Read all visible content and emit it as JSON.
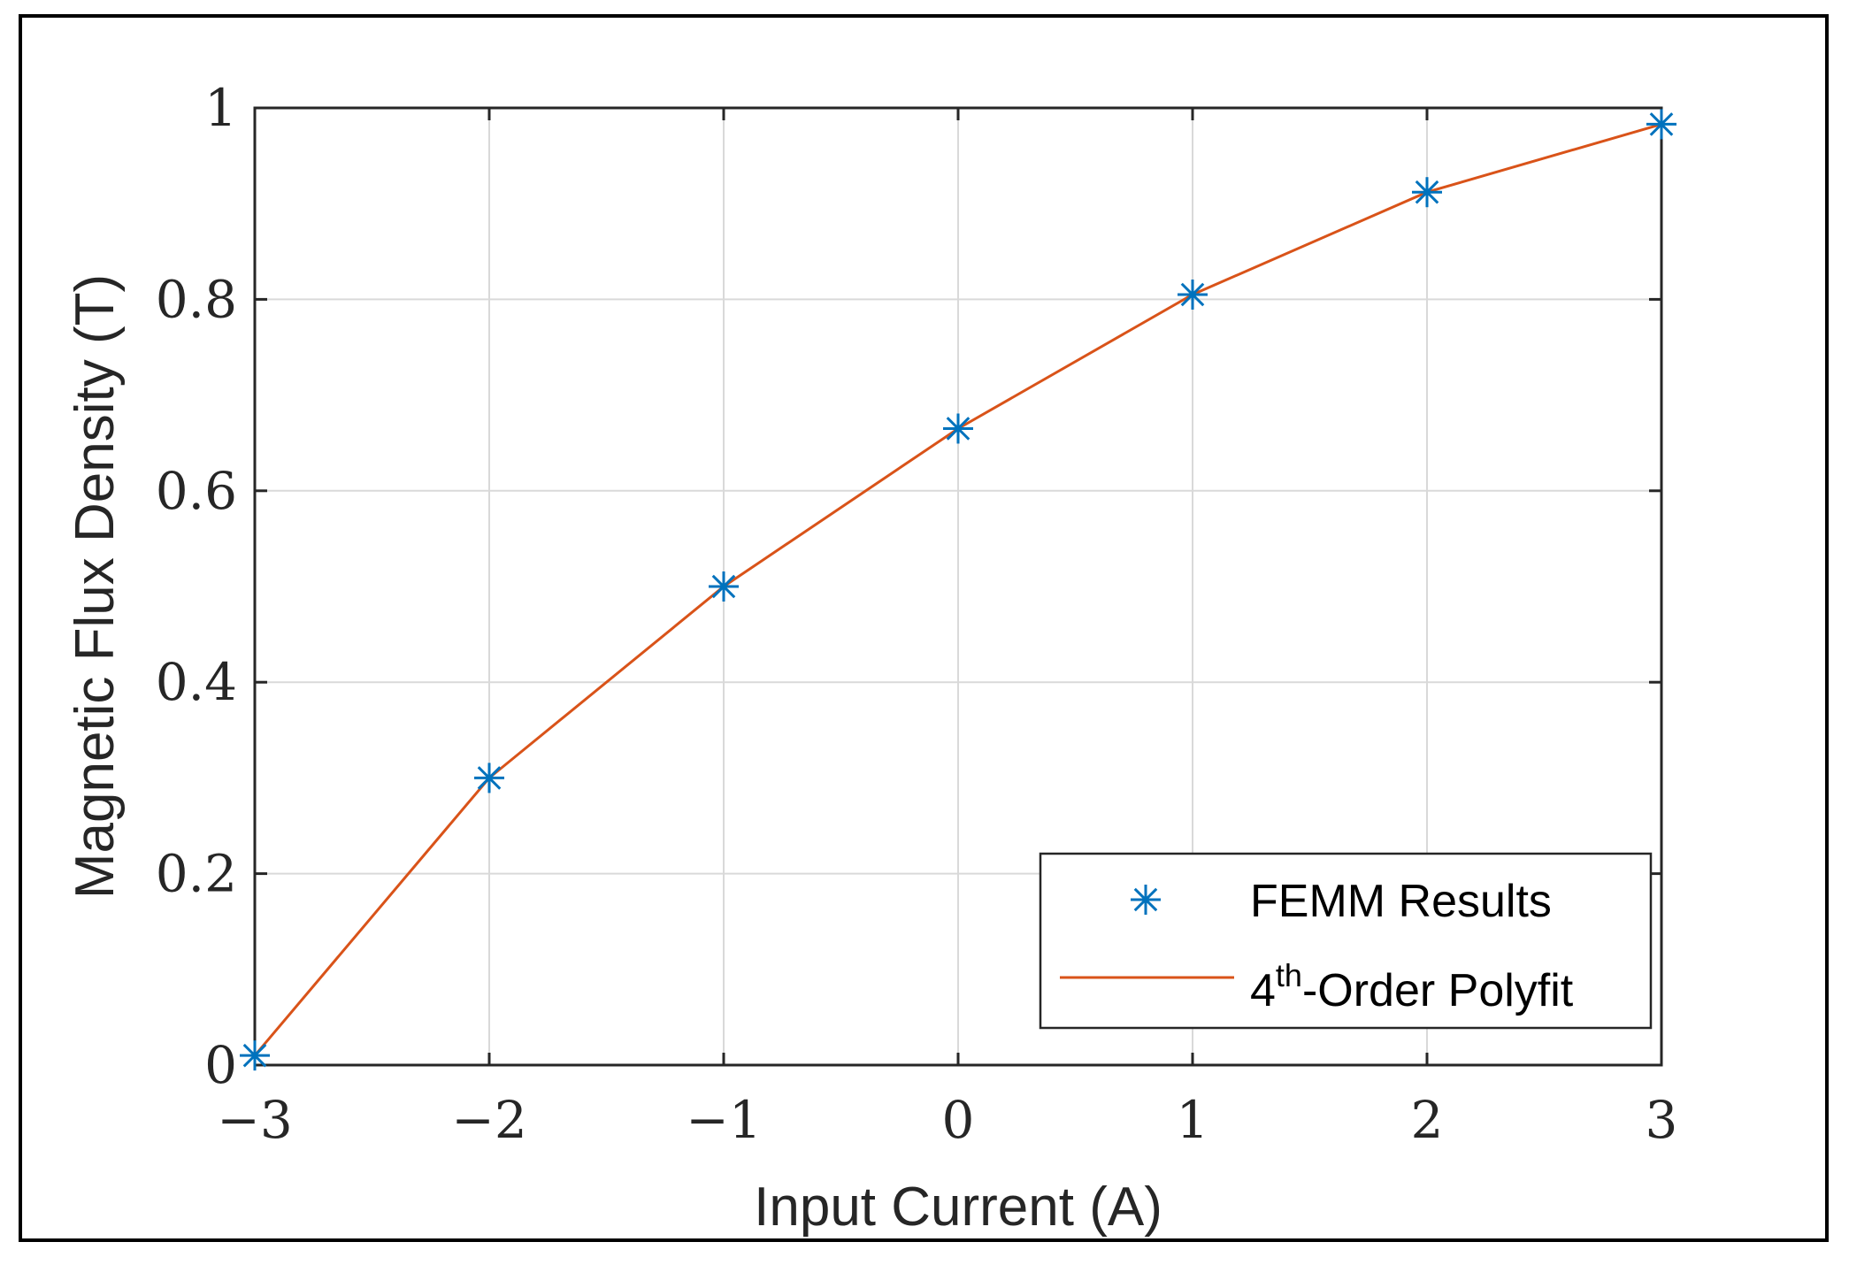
{
  "chart_data": {
    "type": "line",
    "xlabel": "Input Current (A)",
    "ylabel": "Magnetic Flux Density (T)",
    "xlim": [
      -3,
      3
    ],
    "ylim": [
      0,
      1
    ],
    "x_ticks": [
      -3,
      -2,
      -1,
      0,
      1,
      2,
      3
    ],
    "x_tick_labels": [
      "−3",
      "−2",
      "−1",
      "0",
      "1",
      "2",
      "3"
    ],
    "y_ticks": [
      0,
      0.2,
      0.4,
      0.6,
      0.8,
      1
    ],
    "y_tick_labels": [
      "0",
      "0.2",
      "0.4",
      "0.6",
      "0.8",
      "1"
    ],
    "grid": true,
    "legend_position": "bottom-right",
    "series": [
      {
        "name": "FEMM Results",
        "kind": "scatter",
        "marker": "asterisk",
        "color": "#0072BD",
        "x": [
          -3,
          -2,
          -1,
          0,
          1,
          2,
          3
        ],
        "y": [
          0.01,
          0.3,
          0.5,
          0.665,
          0.805,
          0.912,
          0.983
        ]
      },
      {
        "name_base": "4",
        "name_sup": "th",
        "name_suffix": "-Order Polyfit",
        "kind": "line",
        "color": "#D95319",
        "x": [
          -3,
          -2,
          -1,
          0,
          1,
          2,
          3
        ],
        "y": [
          0.01,
          0.3,
          0.5,
          0.665,
          0.805,
          0.912,
          0.983
        ]
      }
    ]
  }
}
